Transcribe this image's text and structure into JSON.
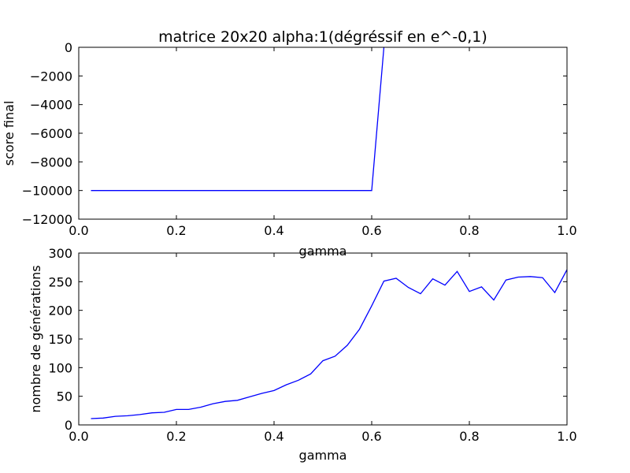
{
  "chart_data": [
    {
      "type": "line",
      "title": "matrice 20x20 alpha:1(dégréssif en e^-0,1)",
      "xlabel": "gamma",
      "ylabel": "score final",
      "xlim": [
        0.0,
        1.0
      ],
      "ylim": [
        -12000,
        0
      ],
      "xticks": [
        0.0,
        0.2,
        0.4,
        0.6,
        0.8,
        1.0
      ],
      "xtick_labels": [
        "0.0",
        "0.2",
        "0.4",
        "0.6",
        "0.8",
        "1.0"
      ],
      "yticks": [
        0,
        -2000,
        -4000,
        -6000,
        -8000,
        -10000,
        -12000
      ],
      "ytick_labels": [
        "0",
        "−2000",
        "−4000",
        "−6000",
        "−8000",
        "−10000",
        "−12000"
      ],
      "grid": false,
      "series": [
        {
          "color": "#0000ff",
          "x": [
            0.025,
            0.6,
            0.625
          ],
          "y": [
            -10000,
            -10000,
            0
          ]
        }
      ]
    },
    {
      "type": "line",
      "title": "",
      "xlabel": "gamma",
      "ylabel": "nombre de générations",
      "xlim": [
        0.0,
        1.0
      ],
      "ylim": [
        0,
        300
      ],
      "xticks": [
        0.0,
        0.2,
        0.4,
        0.6,
        0.8,
        1.0
      ],
      "xtick_labels": [
        "0.0",
        "0.2",
        "0.4",
        "0.6",
        "0.8",
        "1.0"
      ],
      "yticks": [
        0,
        50,
        100,
        150,
        200,
        250,
        300
      ],
      "ytick_labels": [
        "0",
        "50",
        "100",
        "150",
        "200",
        "250",
        "300"
      ],
      "grid": false,
      "series": [
        {
          "color": "#0000ff",
          "x": [
            0.025,
            0.05,
            0.075,
            0.1,
            0.125,
            0.15,
            0.175,
            0.2,
            0.225,
            0.25,
            0.275,
            0.3,
            0.325,
            0.35,
            0.375,
            0.4,
            0.425,
            0.45,
            0.475,
            0.5,
            0.525,
            0.55,
            0.575,
            0.6,
            0.625,
            0.65,
            0.675,
            0.7,
            0.725,
            0.75,
            0.775,
            0.8,
            0.825,
            0.85,
            0.875,
            0.9,
            0.925,
            0.95,
            0.975,
            1.0
          ],
          "y": [
            11,
            12,
            15,
            16,
            18,
            21,
            22,
            27,
            27,
            31,
            37,
            41,
            43,
            49,
            55,
            60,
            70,
            78,
            89,
            112,
            120,
            139,
            167,
            208,
            251,
            256,
            240,
            229,
            255,
            244,
            268,
            233,
            241,
            218,
            253,
            258,
            259,
            257,
            231,
            271
          ]
        }
      ]
    }
  ]
}
